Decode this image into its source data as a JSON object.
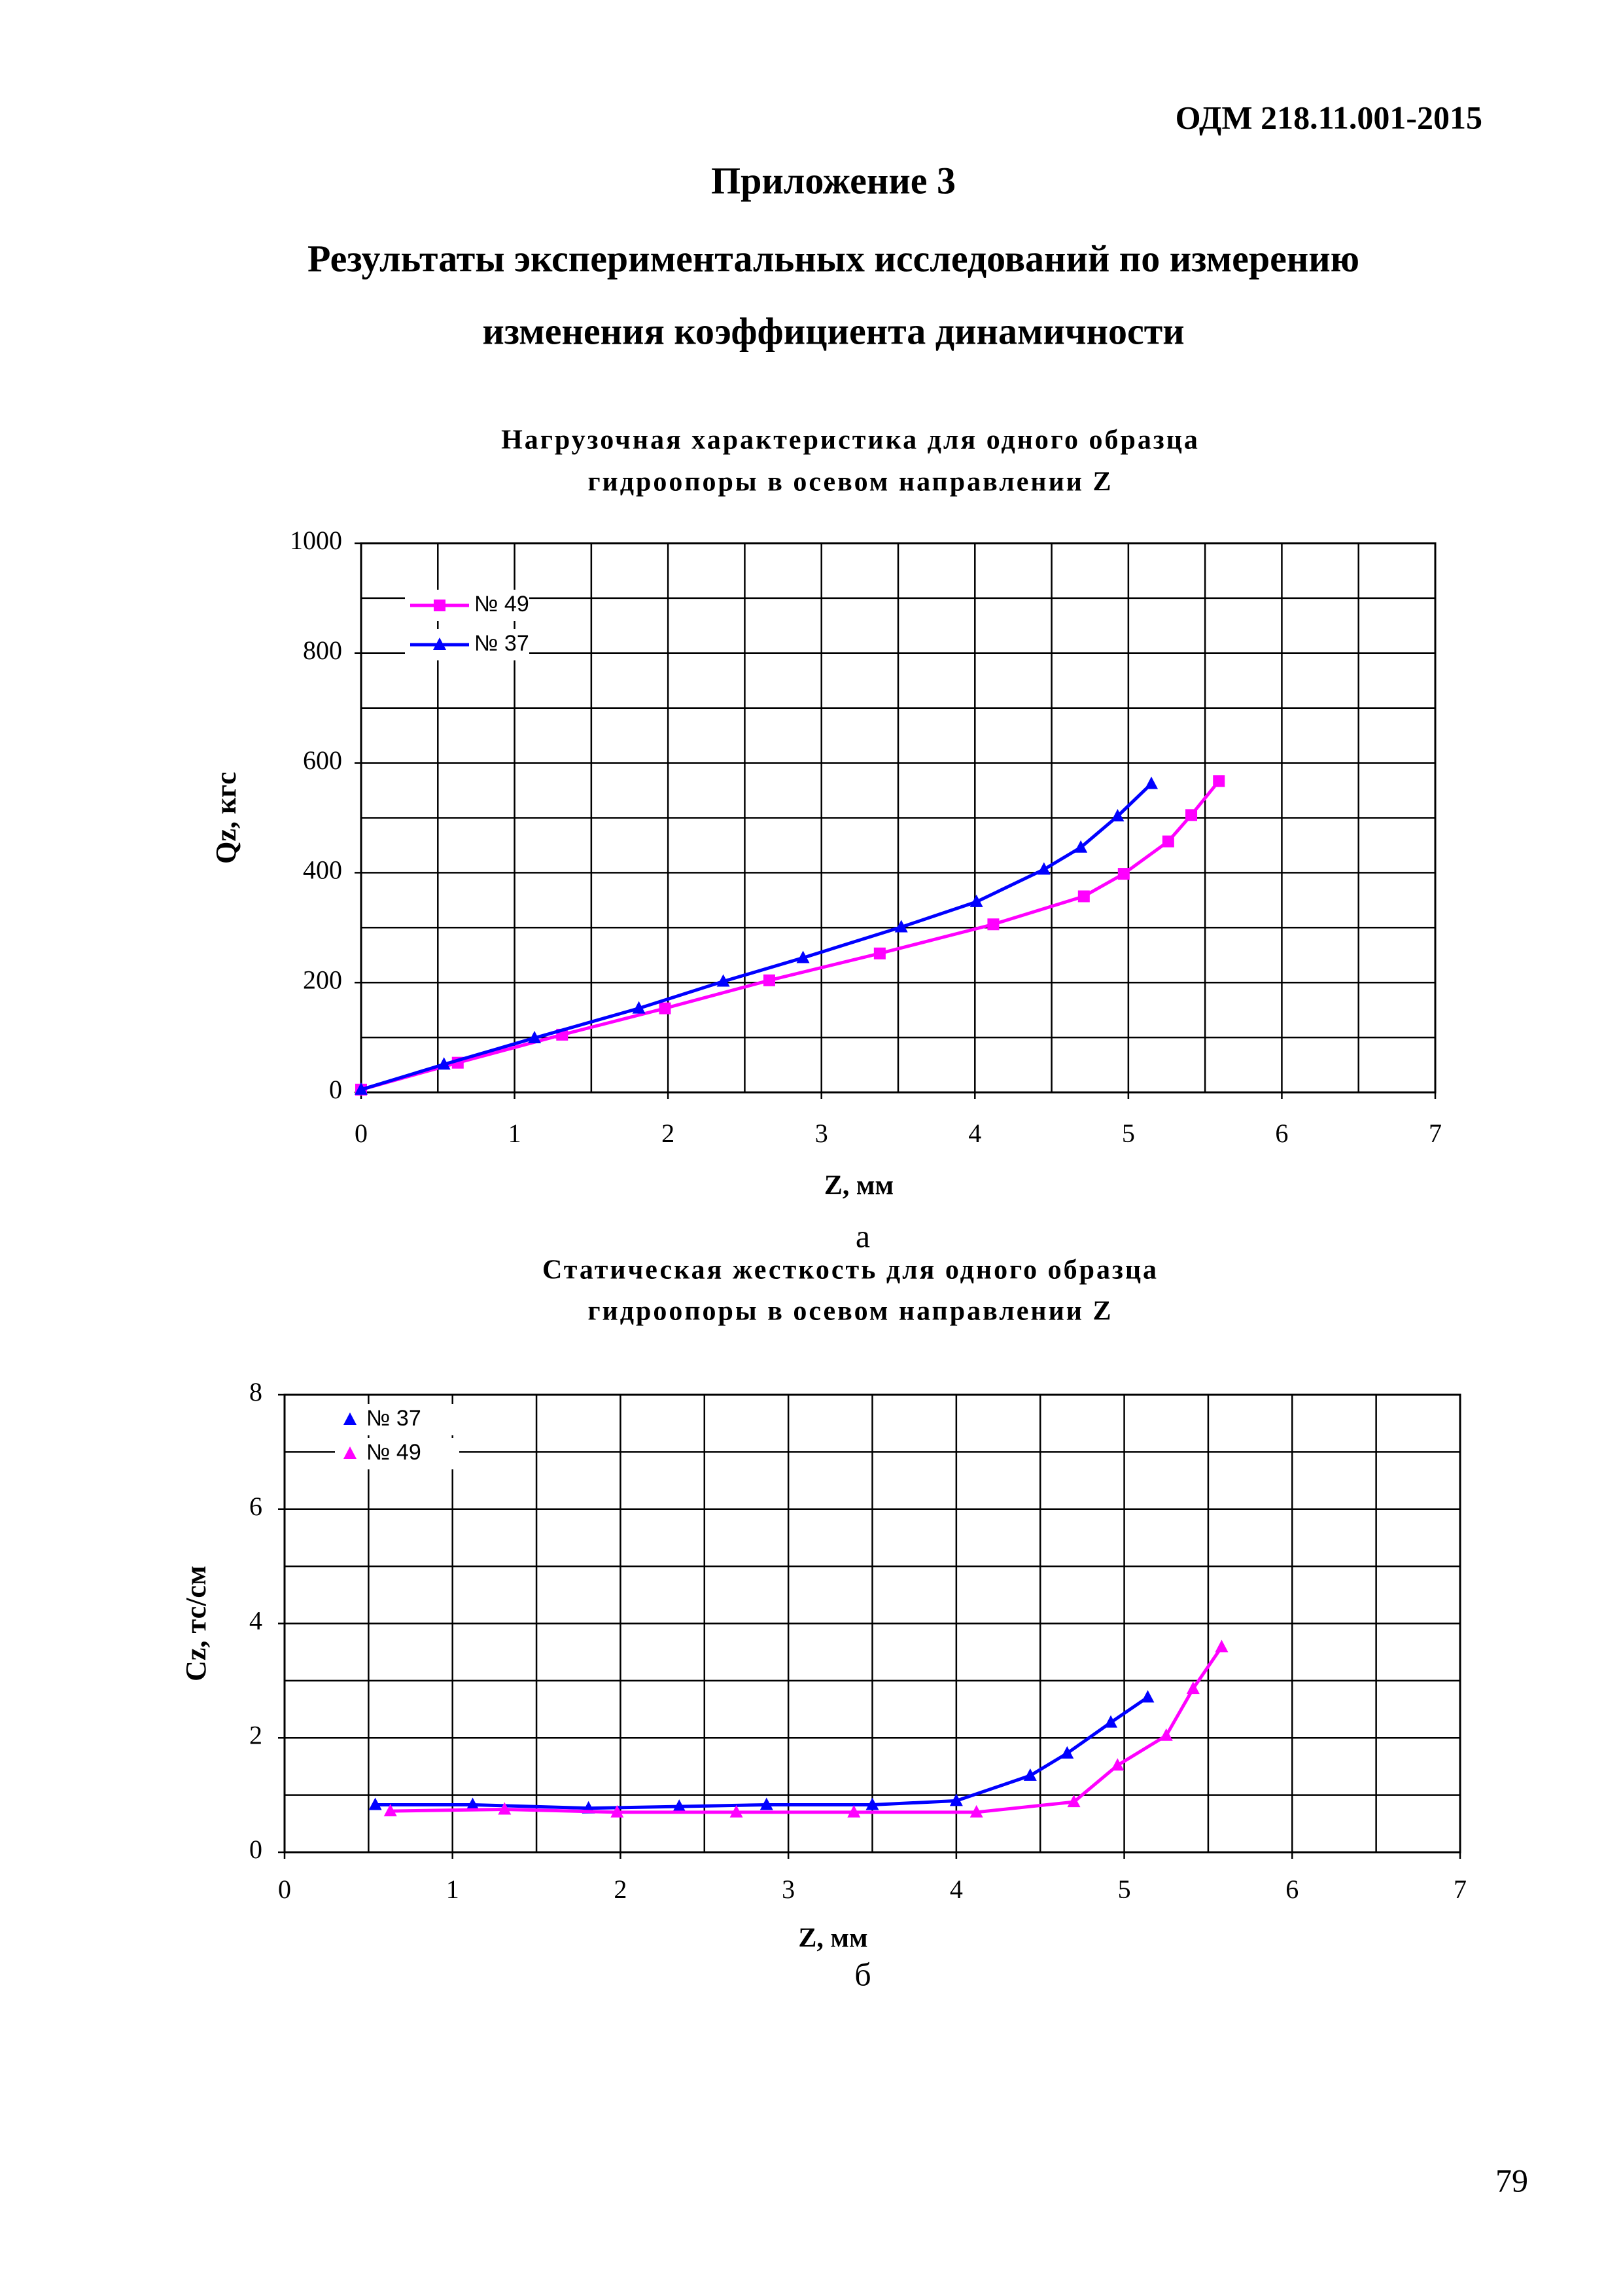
{
  "header": {
    "code": "ОДМ 218.11.001-2015",
    "appendix": "Приложение 3",
    "title_lines": [
      "Результаты экспериментальных исследований по измерению",
      "изменения коэффициента динамичности"
    ]
  },
  "chart_data": [
    {
      "type": "line",
      "title_lines": [
        "Нагрузочная характеристика для одного образца",
        "гидроопоры в осевом направлении Z"
      ],
      "x_label": "Z, мм",
      "y_label": "Qz, кгс",
      "caption": "а",
      "xlim": [
        0,
        7
      ],
      "xticks": [
        0,
        1,
        2,
        3,
        4,
        5,
        6,
        7
      ],
      "minor_xticks": [
        0.5,
        1.5,
        2.5,
        3.5,
        4.5,
        5.5,
        6.5
      ],
      "ylim": [
        0,
        1000
      ],
      "yticks": [
        0,
        200,
        400,
        600,
        800,
        1000
      ],
      "minor_yticks": [
        100,
        300,
        500,
        700,
        900
      ],
      "grid": true,
      "legend": "upper left",
      "series": [
        {
          "name": "№ 49",
          "color": "#ff00ff",
          "marker": "square",
          "x": [
            0,
            0.63,
            1.31,
            1.98,
            2.66,
            3.38,
            4.12,
            4.71,
            4.97,
            5.26,
            5.41,
            5.59
          ],
          "values": [
            5,
            54,
            105,
            153,
            204,
            253,
            306,
            357,
            398,
            457,
            505,
            567
          ]
        },
        {
          "name": "№ 37",
          "color": "#0000ff",
          "marker": "triangle",
          "x": [
            0,
            0.54,
            1.13,
            1.81,
            2.36,
            2.88,
            3.52,
            4.01,
            4.45,
            4.69,
            4.93,
            5.15
          ],
          "values": [
            5,
            51,
            99,
            153,
            202,
            245,
            301,
            347,
            406,
            446,
            503,
            562
          ]
        }
      ]
    },
    {
      "type": "line",
      "title_lines": [
        "Статическая жесткость  для одного образца",
        "гидроопоры в осевом направлении Z"
      ],
      "x_label": "Z, мм",
      "y_label": "Cz, тс/см",
      "caption": "б",
      "xlim": [
        0,
        7
      ],
      "xticks": [
        0,
        1,
        2,
        3,
        4,
        5,
        6,
        7
      ],
      "minor_xticks": [
        0.5,
        1.5,
        2.5,
        3.5,
        4.5,
        5.5,
        6.5
      ],
      "ylim": [
        0,
        8
      ],
      "yticks": [
        0,
        2,
        4,
        6,
        8
      ],
      "minor_yticks": [
        1,
        3,
        5,
        7
      ],
      "grid": true,
      "legend": "upper left",
      "series": [
        {
          "name": "№ 37",
          "color": "#0000ff",
          "marker": "triangle",
          "x": [
            0.54,
            1.12,
            1.81,
            2.35,
            2.87,
            3.5,
            4.0,
            4.44,
            4.66,
            4.92,
            5.14
          ],
          "values": [
            0.83,
            0.83,
            0.77,
            0.8,
            0.83,
            0.83,
            0.9,
            1.34,
            1.73,
            2.27,
            2.71
          ]
        },
        {
          "name": "№ 49",
          "color": "#ff00ff",
          "marker": "triangle",
          "x": [
            0.63,
            1.31,
            1.98,
            2.69,
            3.39,
            4.12,
            4.7,
            4.96,
            5.25,
            5.41,
            5.58
          ],
          "values": [
            0.72,
            0.75,
            0.7,
            0.7,
            0.7,
            0.7,
            0.88,
            1.52,
            2.04,
            2.86,
            3.59
          ]
        }
      ]
    }
  ],
  "page_number": "79"
}
